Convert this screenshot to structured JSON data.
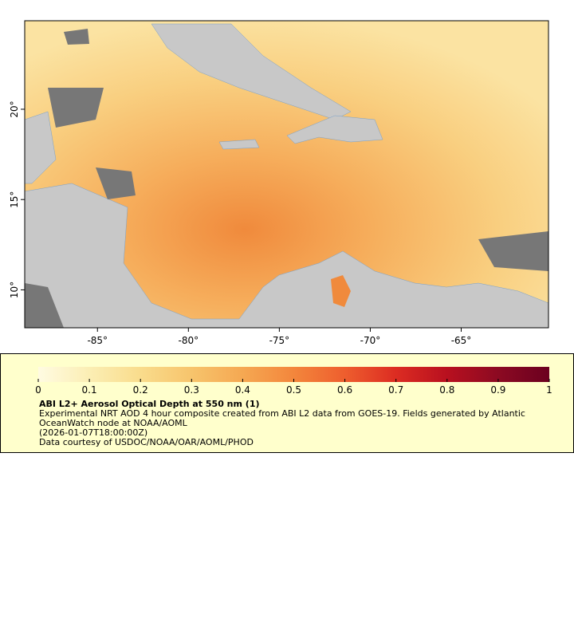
{
  "map": {
    "xlim": [
      -89,
      -60.2
    ],
    "ylim": [
      7.9,
      24.9
    ],
    "xticks": [
      {
        "value": -85,
        "label": "-85°"
      },
      {
        "value": -80,
        "label": "-80°"
      },
      {
        "value": -75,
        "label": "-75°"
      },
      {
        "value": -70,
        "label": "-70°"
      },
      {
        "value": -65,
        "label": "-65°"
      }
    ],
    "yticks": [
      {
        "value": 10,
        "label": "10°"
      },
      {
        "value": 15,
        "label": "15°"
      },
      {
        "value": 20,
        "label": "20°"
      }
    ]
  },
  "legend": {
    "colors": [
      "#fffbe2",
      "#fbeeb4",
      "#f9dc8c",
      "#f7c46c",
      "#f5a852",
      "#f3863c",
      "#ee5e2e",
      "#dc2c22",
      "#b8101f",
      "#8c0a22",
      "#6b0020"
    ],
    "ticks": [
      0,
      0.1,
      0.2,
      0.3,
      0.4,
      0.5,
      0.6,
      0.7,
      0.8,
      0.9,
      1
    ],
    "title": "ABI L2+ Aerosol Optical Depth at 550 nm (1)",
    "description": "Experimental NRT AOD 4 hour composite created from ABI L2 data from GOES-19. Fields generated by Atlantic OceanWatch node at NOAA/AOML",
    "time": "(2026-01-07T18:00:00Z)",
    "credit": "Data courtesy of USDOC/NOAA/OAR/AOML/PHOD"
  }
}
